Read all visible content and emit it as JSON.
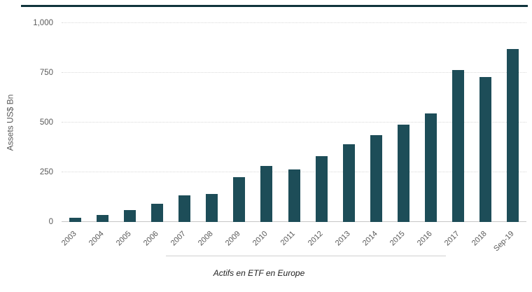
{
  "chart_data": {
    "type": "bar",
    "title": "",
    "caption": "Actifs en ETF en Europe",
    "xlabel": "",
    "ylabel": "Assets US$ Bn",
    "categories": [
      "2003",
      "2004",
      "2005",
      "2006",
      "2007",
      "2008",
      "2009",
      "2010",
      "2011",
      "2012",
      "2013",
      "2014",
      "2015",
      "2016",
      "2017",
      "2018",
      "Sep-19"
    ],
    "values": [
      20,
      35,
      60,
      90,
      135,
      140,
      225,
      280,
      265,
      330,
      390,
      435,
      490,
      545,
      765,
      730,
      870
    ],
    "ylim": [
      0,
      1000
    ],
    "yticks": [
      0,
      250,
      500,
      750,
      1000
    ],
    "ytick_labels": [
      "0",
      "250",
      "500",
      "750",
      "1,000"
    ],
    "bar_color": "#1d4d58",
    "grid": "horizontal-dotted",
    "legend": "none"
  }
}
